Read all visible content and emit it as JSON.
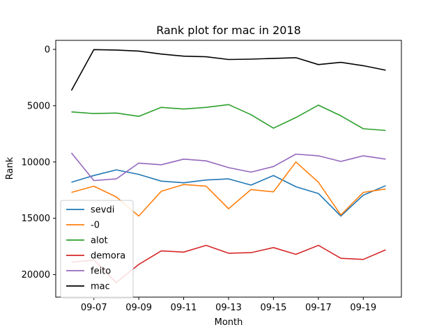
{
  "chart_data": {
    "type": "line",
    "title": "Rank plot for mac in 2018",
    "xlabel": "Month",
    "ylabel": "Rank",
    "x": [
      "09-06",
      "09-07",
      "09-08",
      "09-09",
      "09-10",
      "09-11",
      "09-12",
      "09-13",
      "09-14",
      "09-15",
      "09-16",
      "09-17",
      "09-18",
      "09-19",
      "09-20"
    ],
    "x_tick_labels": [
      "09-07",
      "09-09",
      "09-11",
      "09-13",
      "09-15",
      "09-17",
      "09-19"
    ],
    "y_ticks": [
      0,
      5000,
      10000,
      15000,
      20000
    ],
    "ylim": [
      22000,
      -800
    ],
    "y_inverted": true,
    "grid": false,
    "legend_placement": "lower-left",
    "series": [
      {
        "name": "sevdi",
        "color": "#1f77b4",
        "values": [
          11800,
          11200,
          10700,
          11100,
          11700,
          11850,
          11600,
          11500,
          12050,
          11200,
          12200,
          12800,
          14800,
          12950,
          12100
        ]
      },
      {
        "name": "-0",
        "color": "#ff7f0e",
        "values": [
          12700,
          12150,
          13100,
          14800,
          12600,
          12000,
          12150,
          14150,
          12450,
          12650,
          10000,
          11800,
          14700,
          12700,
          12400
        ]
      },
      {
        "name": "alot",
        "color": "#2ca02c",
        "values": [
          5550,
          5700,
          5650,
          5950,
          5150,
          5300,
          5150,
          4900,
          5800,
          7000,
          6050,
          4950,
          5900,
          7050,
          7200
        ]
      },
      {
        "name": "demora",
        "color": "#d62728",
        "values": [
          18900,
          18700,
          20700,
          19100,
          17900,
          18000,
          17400,
          18100,
          18050,
          17600,
          18200,
          17400,
          18550,
          18650,
          17800
        ]
      },
      {
        "name": "feito",
        "color": "#9467bd",
        "values": [
          9200,
          11650,
          11500,
          10100,
          10250,
          9750,
          9900,
          10500,
          10900,
          10400,
          9300,
          9450,
          9950,
          9450,
          9750
        ]
      },
      {
        "name": "mac",
        "color": "#000000",
        "values": [
          3650,
          20,
          60,
          150,
          420,
          600,
          660,
          900,
          870,
          800,
          740,
          1350,
          1150,
          1450,
          1850
        ]
      }
    ]
  }
}
